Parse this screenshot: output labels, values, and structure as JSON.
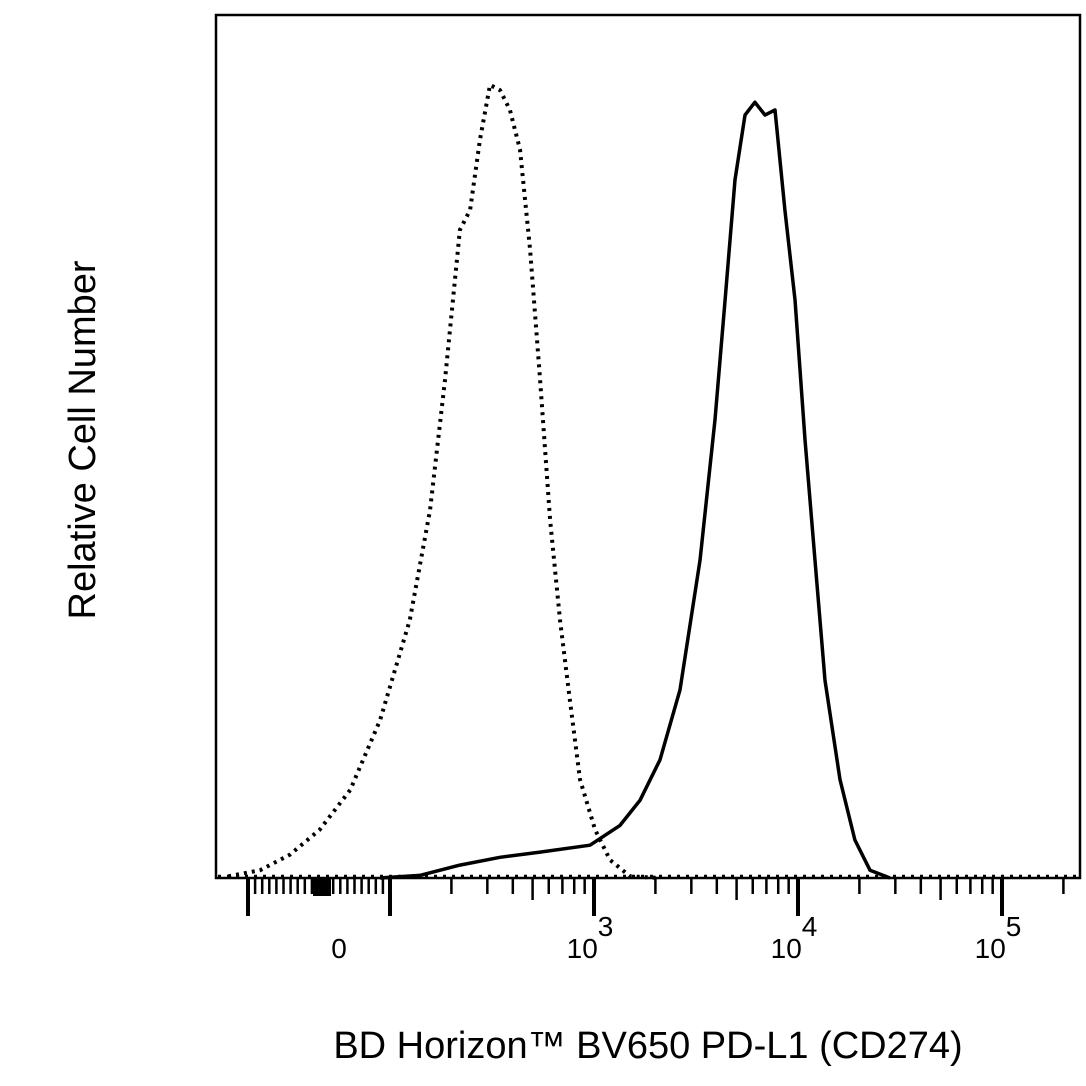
{
  "chart_data": {
    "type": "line",
    "title": "",
    "xlabel": "BD Horizon™ BV650 PD-L1 (CD274)",
    "ylabel": "Relative Cell Number",
    "x_scale": "biexponential",
    "xlim": [
      -150,
      200000
    ],
    "ylim": [
      0,
      100
    ],
    "grid": false,
    "x_tick_labels": [
      {
        "value": 0,
        "base": "0",
        "exp": ""
      },
      {
        "value": 1000,
        "base": "10",
        "exp": "3"
      },
      {
        "value": 10000,
        "base": "10",
        "exp": "4"
      },
      {
        "value": 100000,
        "base": "10",
        "exp": "5"
      }
    ],
    "series": [
      {
        "style": "dotted",
        "color": "#000000",
        "x": [
          -125,
          -83,
          -41,
          1,
          44,
          86,
          125,
          157,
          186,
          220,
          247,
          276,
          309,
          346,
          387,
          434,
          486,
          544,
          609,
          681,
          762,
          854,
          1012,
          1198,
          1501,
          2107
        ],
        "y": [
          0.2,
          0.9,
          2.7,
          5.6,
          10.2,
          18.3,
          29.9,
          42.6,
          57.7,
          75.1,
          77.4,
          85.5,
          91.9,
          91.3,
          89.0,
          84.4,
          72.8,
          57.7,
          41.5,
          29.9,
          20.6,
          11.4,
          5.6,
          2.1,
          0.2,
          0
        ]
      },
      {
        "style": "solid",
        "color": "#000000",
        "x": [
          86,
          140,
          220,
          346,
          544,
          956,
          1341,
          1680,
          2107,
          2640,
          3310,
          3920,
          4390,
          4910,
          5500,
          6150,
          6890,
          7710,
          8630,
          9670,
          10820,
          12110,
          13560,
          16070,
          19010,
          22540,
          28250
        ],
        "y": [
          0,
          0.3,
          1.5,
          2.4,
          3.0,
          3.8,
          6.1,
          9.0,
          13.7,
          21.8,
          36.8,
          53.1,
          67.0,
          80.9,
          88.4,
          89.9,
          88.4,
          89.0,
          77.4,
          67.0,
          50.8,
          36.8,
          22.9,
          11.4,
          4.4,
          0.9,
          0
        ]
      }
    ]
  }
}
